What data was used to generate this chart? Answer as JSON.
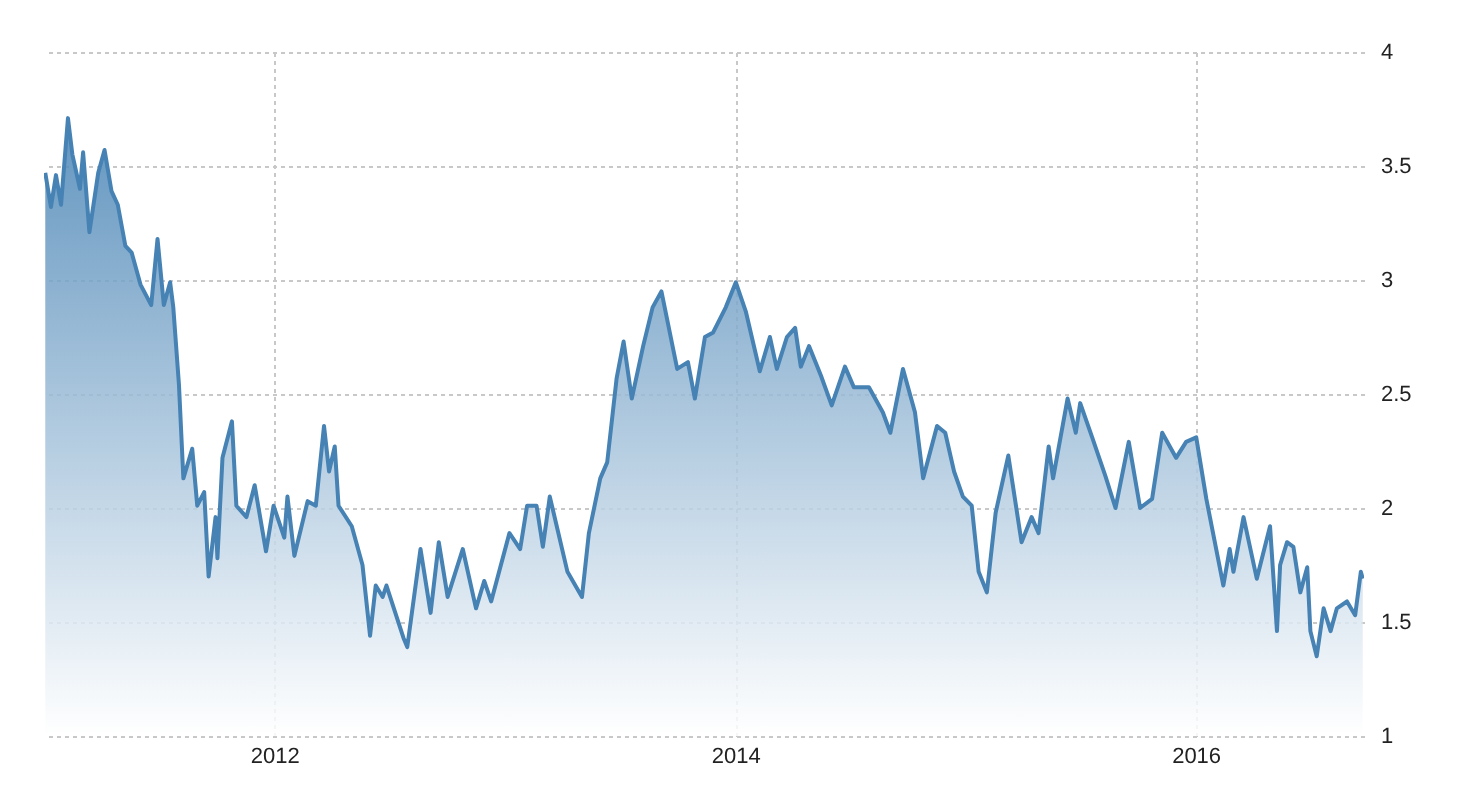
{
  "chart_data": {
    "type": "area",
    "color": "#4682b4",
    "grid": true,
    "xlim": [
      "2011-01-01",
      "2016-09-24"
    ],
    "ylim": [
      1,
      4
    ],
    "xticks": [
      "2012",
      "2014",
      "2016"
    ],
    "yticks": [
      1,
      1.5,
      2,
      2.5,
      3,
      3.5,
      4
    ],
    "x": [
      "2011-01-03",
      "2011-01-12",
      "2011-01-20",
      "2011-01-28",
      "2011-02-08",
      "2011-02-15",
      "2011-02-27",
      "2011-03-04",
      "2011-03-14",
      "2011-03-28",
      "2011-04-07",
      "2011-04-18",
      "2011-04-28",
      "2011-05-10",
      "2011-05-20",
      "2011-06-03",
      "2011-06-20",
      "2011-06-30",
      "2011-07-10",
      "2011-07-20",
      "2011-07-25",
      "2011-08-03",
      "2011-08-10",
      "2011-08-24",
      "2011-09-01",
      "2011-09-12",
      "2011-09-19",
      "2011-09-30",
      "2011-10-03",
      "2011-10-11",
      "2011-10-26",
      "2011-11-02",
      "2011-11-18",
      "2011-12-01",
      "2011-12-19",
      "2011-12-31",
      "2012-01-17",
      "2012-01-22",
      "2012-02-02",
      "2012-02-23",
      "2012-03-07",
      "2012-03-20",
      "2012-03-28",
      "2012-04-06",
      "2012-04-12",
      "2012-05-03",
      "2012-05-20",
      "2012-06-01",
      "2012-06-10",
      "2012-06-21",
      "2012-06-27",
      "2012-07-24",
      "2012-07-30",
      "2012-08-20",
      "2012-09-05",
      "2012-09-18",
      "2012-10-02",
      "2012-10-26",
      "2012-11-16",
      "2012-11-29",
      "2012-12-10",
      "2013-01-08",
      "2013-01-25",
      "2013-02-05",
      "2013-02-20",
      "2013-03-02",
      "2013-03-13",
      "2013-04-10",
      "2013-05-03",
      "2013-05-14",
      "2013-06-01",
      "2013-06-12",
      "2013-06-27",
      "2013-07-08",
      "2013-07-21",
      "2013-08-08",
      "2013-08-23",
      "2013-09-06",
      "2013-10-01",
      "2013-10-18",
      "2013-10-29",
      "2013-11-14",
      "2013-11-27",
      "2013-12-17",
      "2014-01-02",
      "2014-01-18",
      "2014-02-09",
      "2014-02-25",
      "2014-03-08",
      "2014-03-24",
      "2014-04-06",
      "2014-04-15",
      "2014-04-28",
      "2014-05-17",
      "2014-06-03",
      "2014-06-24",
      "2014-07-08",
      "2014-08-01",
      "2014-08-23",
      "2014-09-04",
      "2014-09-24",
      "2014-10-13",
      "2014-10-26",
      "2014-11-17",
      "2014-11-30",
      "2014-12-14",
      "2014-12-28",
      "2015-01-11",
      "2015-01-22",
      "2015-02-04",
      "2015-02-18",
      "2015-03-10",
      "2015-03-31",
      "2015-04-16",
      "2015-04-27",
      "2015-05-13",
      "2015-05-20",
      "2015-06-12",
      "2015-06-25",
      "2015-07-02",
      "2015-07-21",
      "2015-08-11",
      "2015-08-27",
      "2015-09-17",
      "2015-10-05",
      "2015-10-24",
      "2015-11-09",
      "2015-12-01",
      "2015-12-17",
      "2016-01-02",
      "2016-01-18",
      "2016-02-14",
      "2016-02-24",
      "2016-03-01",
      "2016-03-17",
      "2016-04-07",
      "2016-04-28",
      "2016-05-09",
      "2016-05-14",
      "2016-05-25",
      "2016-06-04",
      "2016-06-15",
      "2016-06-26",
      "2016-07-01",
      "2016-07-11",
      "2016-07-22",
      "2016-08-02",
      "2016-08-12",
      "2016-08-28",
      "2016-09-10",
      "2016-09-19",
      "2016-09-22"
    ],
    "values": [
      3.47,
      3.32,
      3.46,
      3.33,
      3.71,
      3.55,
      3.4,
      3.56,
      3.21,
      3.47,
      3.57,
      3.39,
      3.33,
      3.15,
      3.12,
      2.98,
      2.89,
      3.18,
      2.89,
      2.99,
      2.88,
      2.54,
      2.13,
      2.26,
      2.01,
      2.07,
      1.7,
      1.96,
      1.78,
      2.22,
      2.38,
      2.01,
      1.96,
      2.1,
      1.81,
      2.01,
      1.87,
      2.05,
      1.79,
      2.03,
      2.01,
      2.36,
      2.16,
      2.27,
      2.01,
      1.92,
      1.75,
      1.44,
      1.66,
      1.61,
      1.66,
      1.43,
      1.39,
      1.82,
      1.54,
      1.85,
      1.61,
      1.82,
      1.56,
      1.68,
      1.59,
      1.89,
      1.82,
      2.01,
      2.01,
      1.83,
      2.05,
      1.72,
      1.61,
      1.89,
      2.13,
      2.2,
      2.57,
      2.73,
      2.48,
      2.71,
      2.88,
      2.95,
      2.61,
      2.64,
      2.48,
      2.75,
      2.77,
      2.88,
      2.99,
      2.86,
      2.6,
      2.75,
      2.61,
      2.75,
      2.79,
      2.62,
      2.71,
      2.58,
      2.45,
      2.62,
      2.53,
      2.53,
      2.42,
      2.33,
      2.61,
      2.42,
      2.13,
      2.36,
      2.33,
      2.16,
      2.05,
      2.01,
      1.72,
      1.63,
      1.98,
      2.23,
      1.85,
      1.96,
      1.89,
      2.27,
      2.13,
      2.48,
      2.33,
      2.46,
      2.31,
      2.14,
      2.0,
      2.29,
      2.0,
      2.04,
      2.33,
      2.22,
      2.29,
      2.31,
      2.04,
      1.66,
      1.82,
      1.72,
      1.96,
      1.69,
      1.92,
      1.46,
      1.75,
      1.85,
      1.83,
      1.63,
      1.74,
      1.46,
      1.35,
      1.56,
      1.46,
      1.56,
      1.59,
      1.53,
      1.72,
      1.69
    ]
  }
}
